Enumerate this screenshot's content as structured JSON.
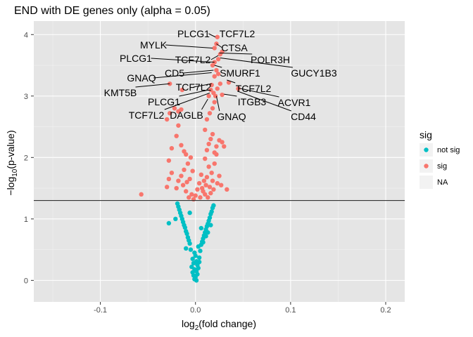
{
  "chart_data": {
    "type": "scatter",
    "title": "END with DE genes only (alpha = 0.05)",
    "xlabel": {
      "main": "log",
      "sub": "2",
      "rest": "(fold change)"
    },
    "ylabel": {
      "main": "−log",
      "sub": "10",
      "rest": "(p-value)"
    },
    "xlim": [
      -0.17,
      0.22
    ],
    "ylim": [
      -0.35,
      4.22
    ],
    "x_ticks": [
      -0.1,
      0.0,
      0.1,
      0.2
    ],
    "x_tick_labels": [
      "-0.1",
      "0.0",
      "0.1",
      "0.2"
    ],
    "y_ticks": [
      0,
      1,
      2,
      3,
      4
    ],
    "y_tick_labels": [
      "0",
      "1",
      "2",
      "3",
      "4"
    ],
    "threshold_y": 1.3,
    "grid": true,
    "background": "#e5e5e5",
    "legend": {
      "title": "sig",
      "position": "right",
      "entries": [
        {
          "label": "not sig",
          "color": "#00bfc4"
        },
        {
          "label": "sig",
          "color": "#f8766d"
        },
        {
          "label": "NA",
          "color": null
        }
      ]
    },
    "series": [
      {
        "name": "not sig",
        "color": "#00bfc4",
        "points": [
          [
            0.001,
            0.0
          ],
          [
            -0.001,
            0.02
          ],
          [
            0.0,
            0.05
          ],
          [
            -0.002,
            0.08
          ],
          [
            0.002,
            0.1
          ],
          [
            -0.003,
            0.13
          ],
          [
            0.001,
            0.15
          ],
          [
            -0.001,
            0.18
          ],
          [
            0.003,
            0.2
          ],
          [
            -0.004,
            0.22
          ],
          [
            0.002,
            0.25
          ],
          [
            -0.002,
            0.28
          ],
          [
            0.001,
            0.31
          ],
          [
            -0.003,
            0.35
          ],
          [
            0.004,
            0.37
          ],
          [
            0.0,
            0.4
          ],
          [
            -0.001,
            0.45
          ],
          [
            0.005,
            0.48
          ],
          [
            -0.005,
            0.5
          ],
          [
            0.003,
            0.55
          ],
          [
            0.006,
            0.58
          ],
          [
            -0.006,
            0.6
          ],
          [
            0.007,
            0.63
          ],
          [
            -0.007,
            0.65
          ],
          [
            0.008,
            0.68
          ],
          [
            -0.008,
            0.7
          ],
          [
            0.009,
            0.73
          ],
          [
            -0.009,
            0.76
          ],
          [
            0.01,
            0.78
          ],
          [
            -0.01,
            0.8
          ],
          [
            0.011,
            0.83
          ],
          [
            -0.011,
            0.86
          ],
          [
            0.012,
            0.88
          ],
          [
            -0.012,
            0.9
          ],
          [
            0.013,
            0.92
          ],
          [
            -0.013,
            0.95
          ],
          [
            0.014,
            0.97
          ],
          [
            -0.014,
            1.0
          ],
          [
            0.015,
            1.02
          ],
          [
            -0.015,
            1.05
          ],
          [
            0.016,
            1.08
          ],
          [
            -0.016,
            1.1
          ],
          [
            0.017,
            1.12
          ],
          [
            -0.017,
            1.15
          ],
          [
            0.018,
            1.18
          ],
          [
            -0.018,
            1.2
          ],
          [
            0.019,
            1.22
          ],
          [
            -0.019,
            1.25
          ],
          [
            -0.021,
            1.0
          ],
          [
            -0.028,
            0.93
          ],
          [
            0.004,
            0.3
          ],
          [
            0.006,
            0.85
          ],
          [
            0.008,
            0.62
          ],
          [
            -0.006,
            1.1
          ],
          [
            0.013,
            0.78
          ],
          [
            -0.01,
            0.52
          ],
          [
            0.016,
            0.9
          ],
          [
            0.011,
            0.72
          ]
        ]
      },
      {
        "name": "sig",
        "color": "#f8766d",
        "points": [
          [
            -0.057,
            1.4
          ],
          [
            -0.03,
            1.52
          ],
          [
            -0.028,
            1.65
          ],
          [
            -0.025,
            1.75
          ],
          [
            -0.02,
            1.5
          ],
          [
            -0.018,
            1.62
          ],
          [
            -0.015,
            1.7
          ],
          [
            -0.013,
            1.55
          ],
          [
            -0.012,
            1.8
          ],
          [
            -0.01,
            1.45
          ],
          [
            -0.009,
            1.6
          ],
          [
            -0.008,
            1.9
          ],
          [
            -0.007,
            1.35
          ],
          [
            -0.006,
            1.65
          ],
          [
            -0.005,
            2.0
          ],
          [
            -0.004,
            1.4
          ],
          [
            -0.003,
            1.78
          ],
          [
            -0.002,
            1.32
          ],
          [
            0.0,
            1.38
          ],
          [
            0.002,
            1.48
          ],
          [
            0.004,
            1.58
          ],
          [
            0.005,
            1.35
          ],
          [
            0.006,
            1.72
          ],
          [
            0.007,
            1.5
          ],
          [
            0.008,
            1.45
          ],
          [
            0.009,
            1.62
          ],
          [
            0.01,
            1.4
          ],
          [
            0.011,
            1.55
          ],
          [
            0.012,
            1.68
          ],
          [
            0.013,
            1.35
          ],
          [
            0.014,
            1.85
          ],
          [
            0.015,
            1.52
          ],
          [
            0.016,
            1.42
          ],
          [
            0.017,
            1.75
          ],
          [
            0.018,
            1.62
          ],
          [
            0.019,
            1.48
          ],
          [
            0.02,
            1.9
          ],
          [
            0.022,
            2.05
          ],
          [
            0.023,
            1.58
          ],
          [
            0.025,
            1.7
          ],
          [
            0.027,
            1.55
          ],
          [
            0.03,
            2.18
          ],
          [
            0.033,
            1.48
          ],
          [
            -0.028,
            1.95
          ],
          [
            -0.025,
            2.15
          ],
          [
            -0.02,
            2.35
          ],
          [
            -0.015,
            2.2
          ],
          [
            -0.012,
            2.1
          ],
          [
            -0.01,
            2.05
          ],
          [
            0.01,
            1.98
          ],
          [
            0.012,
            2.12
          ],
          [
            0.014,
            2.22
          ],
          [
            0.016,
            2.3
          ],
          [
            0.018,
            2.38
          ],
          [
            0.02,
            2.08
          ],
          [
            0.022,
            2.18
          ],
          [
            0.025,
            2.28
          ],
          [
            0.028,
            2.25
          ],
          [
            -0.03,
            2.62
          ],
          [
            -0.027,
            2.72
          ],
          [
            -0.022,
            2.8
          ],
          [
            -0.018,
            2.75
          ],
          [
            0.012,
            2.62
          ],
          [
            0.015,
            2.72
          ],
          [
            0.018,
            2.8
          ],
          [
            0.02,
            2.9
          ],
          [
            0.014,
            3.0
          ],
          [
            0.016,
            3.1
          ],
          [
            0.019,
            3.05
          ],
          [
            0.021,
            3.0
          ],
          [
            0.023,
            3.12
          ],
          [
            0.026,
            3.2
          ],
          [
            0.028,
            3.02
          ],
          [
            0.035,
            3.22
          ],
          [
            0.045,
            3.12
          ],
          [
            -0.027,
            3.2
          ],
          [
            -0.014,
            3.1
          ],
          [
            0.017,
            3.18
          ],
          [
            0.02,
            3.32
          ],
          [
            0.022,
            3.42
          ],
          [
            0.024,
            3.36
          ],
          [
            0.018,
            3.5
          ],
          [
            0.02,
            3.55
          ],
          [
            0.024,
            3.6
          ],
          [
            0.026,
            3.68
          ],
          [
            0.028,
            3.72
          ],
          [
            0.02,
            3.78
          ],
          [
            0.022,
            3.85
          ],
          [
            0.023,
            3.96
          ],
          [
            -0.015,
            2.78
          ],
          [
            0.01,
            2.45
          ],
          [
            -0.018,
            2.52
          ]
        ]
      }
    ],
    "annotations": [
      {
        "label": "PLCG1",
        "x": 0.021,
        "y": 3.96
      },
      {
        "label": "TCF7L2",
        "x": 0.023,
        "y": 3.92
      },
      {
        "label": "CTSA",
        "x": 0.022,
        "y": 3.85
      },
      {
        "label": "MYLK",
        "x": 0.018,
        "y": 3.78
      },
      {
        "label": "POLR3H",
        "x": 0.025,
        "y": 3.7
      },
      {
        "label": "TCF7L2",
        "x": 0.024,
        "y": 3.66
      },
      {
        "label": "PLCG1",
        "x": 0.02,
        "y": 3.55
      },
      {
        "label": "GUCY1B3",
        "x": 0.026,
        "y": 3.62
      },
      {
        "label": "SMURF1",
        "x": 0.02,
        "y": 3.5
      },
      {
        "label": "CD5",
        "x": 0.019,
        "y": 3.42
      },
      {
        "label": "GNAQ",
        "x": 0.017,
        "y": 3.38
      },
      {
        "label": "TCF7L2",
        "x": 0.033,
        "y": 3.26
      },
      {
        "label": "TCF7L2",
        "x": 0.017,
        "y": 3.2
      },
      {
        "label": "KMT5B",
        "x": -0.027,
        "y": 3.2
      },
      {
        "label": "ACVR1",
        "x": 0.045,
        "y": 3.13
      },
      {
        "label": "ITGB3",
        "x": 0.03,
        "y": 3.03
      },
      {
        "label": "PLCG1",
        "x": 0.014,
        "y": 3.1
      },
      {
        "label": "CD44",
        "x": 0.044,
        "y": 3.08
      },
      {
        "label": "TCF7L2",
        "x": 0.015,
        "y": 3.05
      },
      {
        "label": "DAGLB",
        "x": 0.013,
        "y": 2.95
      },
      {
        "label": "GNAQ",
        "x": 0.022,
        "y": 3.0
      }
    ]
  }
}
